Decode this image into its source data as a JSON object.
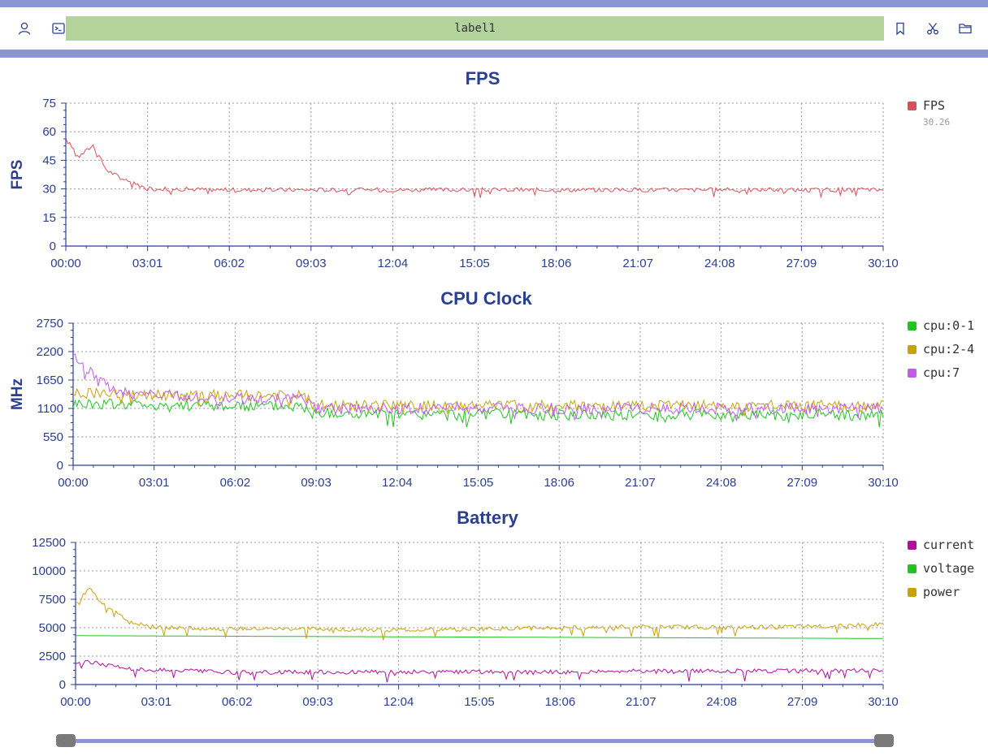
{
  "toolbar": {
    "label": "label1",
    "icons": [
      "user-icon",
      "terminal-icon",
      "bookmark-icon",
      "scissors-icon",
      "folder-icon"
    ]
  },
  "colors": {
    "band": "#8c96d4",
    "title": "#2b3f8f",
    "axis": "#2b3f8f",
    "grid": "#9a9a9a",
    "fps": "#d9505c",
    "cpu01": "#22c422",
    "cpu24": "#c9a20a",
    "cpu7": "#c25ce6",
    "current": "#b0109c",
    "voltage": "#22c422",
    "power": "#c9a20a"
  },
  "chart_data": [
    {
      "type": "line",
      "title": "FPS",
      "ylabel": "FPS",
      "ylim": [
        0,
        75
      ],
      "yticks": [
        "0",
        "15",
        "30",
        "45",
        "60",
        "75"
      ],
      "xticks": [
        "00:00",
        "03:01",
        "06:02",
        "09:03",
        "12:04",
        "15:05",
        "18:06",
        "21:07",
        "24:08",
        "27:09",
        "30:10"
      ],
      "grid": true,
      "legend_position": "right",
      "series": [
        {
          "name": "FPS",
          "value_label": "30.26",
          "color": "#d9505c",
          "x": [
            "00:00",
            "00:30",
            "01:00",
            "01:30",
            "02:00",
            "02:30",
            "03:01",
            "04:00",
            "06:02",
            "09:03",
            "12:04",
            "15:05",
            "18:06",
            "21:07",
            "24:08",
            "27:09",
            "30:10"
          ],
          "values": [
            56,
            47,
            53,
            40,
            36,
            33,
            30,
            30,
            29.5,
            29.5,
            29.5,
            29.5,
            29.5,
            29.5,
            29.5,
            29.5,
            29.5
          ]
        }
      ]
    },
    {
      "type": "line",
      "title": "CPU Clock",
      "ylabel": "MHz",
      "ylim": [
        0,
        2750
      ],
      "yticks": [
        "0",
        "550",
        "1100",
        "1650",
        "2200",
        "2750"
      ],
      "xticks": [
        "00:00",
        "03:01",
        "06:02",
        "09:03",
        "12:04",
        "15:05",
        "18:06",
        "21:07",
        "24:08",
        "27:09",
        "30:10"
      ],
      "grid": true,
      "legend_position": "right",
      "series": [
        {
          "name": "cpu:0-1",
          "color": "#22c422",
          "x": [
            "00:00",
            "03:01",
            "06:02",
            "08:30",
            "09:03",
            "12:04",
            "15:05",
            "18:06",
            "21:07",
            "24:08",
            "27:09",
            "30:10"
          ],
          "values": [
            1200,
            1180,
            1150,
            1150,
            1000,
            980,
            980,
            980,
            980,
            980,
            980,
            980
          ]
        },
        {
          "name": "cpu:2-4",
          "color": "#c9a20a",
          "x": [
            "00:00",
            "03:01",
            "06:02",
            "08:30",
            "09:03",
            "12:04",
            "15:05",
            "18:06",
            "21:07",
            "24:08",
            "27:09",
            "30:10"
          ],
          "values": [
            1400,
            1350,
            1350,
            1350,
            1150,
            1150,
            1150,
            1150,
            1150,
            1150,
            1150,
            1150
          ]
        },
        {
          "name": "cpu:7",
          "color": "#c25ce6",
          "x": [
            "00:00",
            "00:30",
            "01:00",
            "01:30",
            "02:00",
            "03:01",
            "06:02",
            "08:30",
            "09:03",
            "12:04",
            "15:05",
            "18:06",
            "21:07",
            "24:08",
            "27:09",
            "30:10"
          ],
          "values": [
            2100,
            1900,
            1600,
            1500,
            1400,
            1350,
            1300,
            1300,
            1100,
            1100,
            1100,
            1100,
            1100,
            1100,
            1100,
            1100
          ]
        }
      ]
    },
    {
      "type": "line",
      "title": "Battery",
      "ylabel": "",
      "ylim": [
        0,
        12500
      ],
      "yticks": [
        "0",
        "2500",
        "5000",
        "7500",
        "10000",
        "12500"
      ],
      "xticks": [
        "00:00",
        "03:01",
        "06:02",
        "09:03",
        "12:04",
        "15:05",
        "18:06",
        "21:07",
        "24:08",
        "27:09",
        "30:10"
      ],
      "grid": true,
      "legend_position": "right",
      "series": [
        {
          "name": "current",
          "color": "#b0109c",
          "x": [
            "00:00",
            "00:30",
            "01:00",
            "02:00",
            "03:01",
            "06:02",
            "09:03",
            "12:04",
            "15:05",
            "18:06",
            "21:07",
            "24:08",
            "27:09",
            "30:10"
          ],
          "values": [
            1900,
            2000,
            1800,
            1400,
            1300,
            1050,
            1100,
            1100,
            1100,
            1100,
            1200,
            1200,
            1200,
            1250
          ]
        },
        {
          "name": "voltage",
          "color": "#22c422",
          "x": [
            "00:00",
            "30:10"
          ],
          "values": [
            4300,
            4050
          ]
        },
        {
          "name": "power",
          "color": "#c9a20a",
          "x": [
            "00:00",
            "00:30",
            "01:00",
            "01:30",
            "02:00",
            "03:01",
            "06:02",
            "09:03",
            "12:04",
            "15:05",
            "18:06",
            "21:07",
            "24:08",
            "27:09",
            "30:10"
          ],
          "values": [
            7000,
            8500,
            7200,
            6500,
            5500,
            5000,
            4900,
            4900,
            4800,
            4900,
            5000,
            5100,
            5000,
            5100,
            5300
          ]
        }
      ]
    }
  ]
}
